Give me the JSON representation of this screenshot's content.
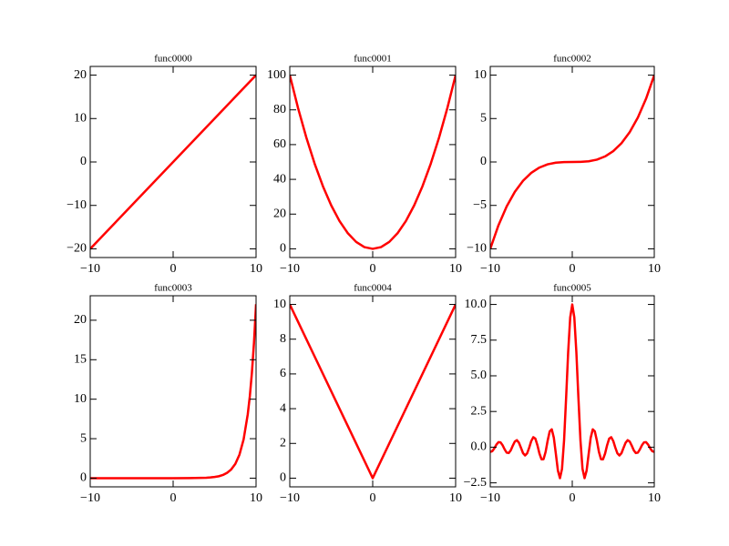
{
  "chart_data": [
    {
      "type": "line",
      "title": "func0000",
      "color": "#ff0000",
      "x": [
        -10,
        10
      ],
      "values": [
        -20,
        20
      ],
      "xlim": [
        -10,
        10
      ],
      "xticks": [
        {
          "value": -10,
          "label": "−10"
        },
        0,
        10
      ],
      "ylim": [
        -22,
        22
      ],
      "yticks": [
        {
          "value": -20,
          "label": "−20"
        },
        {
          "value": -10,
          "label": "−10"
        },
        0,
        10,
        20
      ]
    },
    {
      "type": "line",
      "title": "func0001",
      "color": "#ff0000",
      "x": [
        -10,
        -9,
        -8,
        -7,
        -6,
        -5,
        -4,
        -3,
        -2,
        -1,
        0,
        1,
        2,
        3,
        4,
        5,
        6,
        7,
        8,
        9,
        10
      ],
      "values": [
        100,
        81,
        64,
        49,
        36,
        25,
        16,
        9,
        4,
        1,
        0,
        1,
        4,
        9,
        16,
        25,
        36,
        49,
        64,
        81,
        100
      ],
      "xlim": [
        -10,
        10
      ],
      "xticks": [
        {
          "value": -10,
          "label": "−10"
        },
        0,
        10
      ],
      "ylim": [
        -5,
        105
      ],
      "yticks": [
        0,
        20,
        40,
        60,
        80,
        100
      ]
    },
    {
      "type": "line",
      "title": "func0002",
      "color": "#ff0000",
      "x": [
        -10,
        -9,
        -8,
        -7,
        -6,
        -5,
        -4,
        -3,
        -2,
        -1,
        0,
        1,
        2,
        3,
        4,
        5,
        6,
        7,
        8,
        9,
        10
      ],
      "values": [
        -10,
        -7.29,
        -5.12,
        -3.43,
        -2.16,
        -1.25,
        -0.64,
        -0.27,
        -0.08,
        -0.01,
        0,
        0.01,
        0.08,
        0.27,
        0.64,
        1.25,
        2.16,
        3.43,
        5.12,
        7.29,
        10
      ],
      "xlim": [
        -10,
        10
      ],
      "xticks": [
        {
          "value": -10,
          "label": "−10"
        },
        0,
        10
      ],
      "ylim": [
        -11,
        11
      ],
      "yticks": [
        {
          "value": -10,
          "label": "−10"
        },
        {
          "value": -5,
          "label": "−5"
        },
        0,
        5,
        10
      ]
    },
    {
      "type": "line",
      "title": "func0003",
      "color": "#ff0000",
      "x": [
        -10,
        -8,
        -6,
        -4,
        -2,
        0,
        2,
        4,
        4.5,
        5,
        5.5,
        6,
        6.5,
        7,
        7.5,
        8,
        8.5,
        9,
        9.25,
        9.5,
        9.75,
        10
      ],
      "values": [
        0,
        0,
        0,
        0,
        0,
        0,
        0.01,
        0.05,
        0.09,
        0.15,
        0.24,
        0.4,
        0.67,
        1.1,
        1.81,
        2.98,
        4.91,
        8.1,
        10.4,
        13.36,
        17.15,
        22.03
      ],
      "xlim": [
        -10,
        10
      ],
      "xticks": [
        {
          "value": -10,
          "label": "−10"
        },
        0,
        10
      ],
      "ylim": [
        -1.1,
        23.1
      ],
      "yticks": [
        0,
        5,
        10,
        15,
        20
      ]
    },
    {
      "type": "line",
      "title": "func0004",
      "color": "#ff0000",
      "x": [
        -10,
        0,
        10
      ],
      "values": [
        10,
        0,
        10
      ],
      "xlim": [
        -10,
        10
      ],
      "xticks": [
        {
          "value": -10,
          "label": "−10"
        },
        0,
        10
      ],
      "ylim": [
        -0.5,
        10.5
      ],
      "yticks": [
        0,
        2,
        4,
        6,
        8,
        10
      ]
    },
    {
      "type": "line",
      "title": "func0005",
      "color": "#ff0000",
      "x": [
        -10,
        -9.75,
        -9.5,
        -9.25,
        -9,
        -8.75,
        -8.5,
        -8.25,
        -8,
        -7.75,
        -7.5,
        -7.25,
        -7,
        -6.75,
        -6.5,
        -6.25,
        -6,
        -5.75,
        -5.5,
        -5.25,
        -5,
        -4.75,
        -4.5,
        -4.25,
        -4,
        -3.75,
        -3.5,
        -3.25,
        -3,
        -2.75,
        -2.5,
        -2.25,
        -2,
        -1.75,
        -1.5,
        -1.25,
        -1,
        -0.75,
        -0.5,
        -0.25,
        0,
        0.25,
        0.5,
        0.75,
        1,
        1.25,
        1.5,
        1.75,
        2,
        2.25,
        2.5,
        2.75,
        3,
        3.25,
        3.5,
        3.75,
        4,
        4.25,
        4.5,
        4.75,
        5,
        5.25,
        5.5,
        5.75,
        6,
        6.25,
        6.5,
        6.75,
        7,
        7.25,
        7.5,
        7.75,
        8,
        8.25,
        8.5,
        8.75,
        9,
        9.25,
        9.5,
        9.75,
        10
      ],
      "values": [
        -0.33,
        -0.28,
        -0.08,
        0.18,
        0.35,
        0.34,
        0.14,
        -0.15,
        -0.38,
        -0.41,
        -0.22,
        0.11,
        0.4,
        0.49,
        0.31,
        -0.05,
        -0.42,
        -0.58,
        -0.43,
        -0.03,
        0.43,
        0.7,
        0.6,
        0.14,
        -0.45,
        -0.85,
        -0.84,
        -0.33,
        0.46,
        1.11,
        1.25,
        0.67,
        -0.47,
        -1.64,
        -2.17,
        -1.52,
        0.47,
        3.46,
        6.65,
        9.09,
        10,
        9.09,
        6.65,
        3.46,
        0.47,
        -1.52,
        -2.17,
        -1.64,
        -0.47,
        0.67,
        1.25,
        1.11,
        0.46,
        -0.33,
        -0.84,
        -0.85,
        -0.45,
        0.14,
        0.6,
        0.7,
        0.43,
        -0.03,
        -0.43,
        -0.58,
        -0.42,
        -0.05,
        0.31,
        0.49,
        0.4,
        0.11,
        -0.22,
        -0.41,
        -0.38,
        -0.15,
        0.14,
        0.34,
        0.35,
        0.18,
        -0.08,
        -0.28,
        -0.33
      ],
      "xlim": [
        -10,
        10
      ],
      "xticks": [
        {
          "value": -10,
          "label": "−10"
        },
        0,
        10
      ],
      "ylim": [
        -2.78,
        10.61
      ],
      "yticks": [
        {
          "value": -2.5,
          "label": "−2.5"
        },
        {
          "value": 0,
          "label": "0.0"
        },
        {
          "value": 2.5,
          "label": "2.5"
        },
        {
          "value": 5,
          "label": "5.0"
        },
        {
          "value": 7.5,
          "label": "7.5"
        },
        {
          "value": 10,
          "label": "10.0"
        }
      ]
    }
  ]
}
